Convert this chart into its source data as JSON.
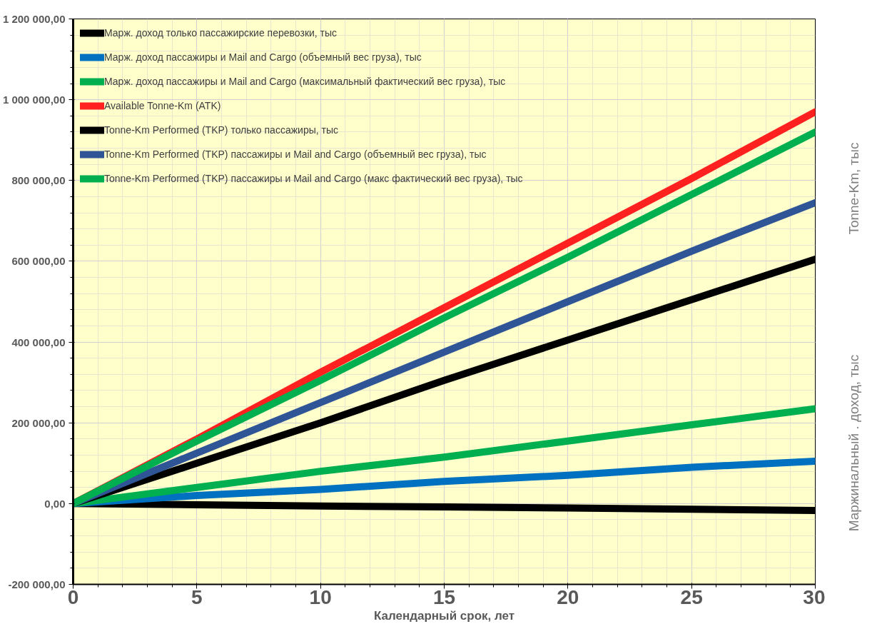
{
  "chart_data": {
    "type": "line",
    "xlabel": "Календарный срок, лет",
    "annotations": [
      "Tonne-Km, тыс",
      "Маржинальный . доход, тыс"
    ],
    "x": [
      0,
      5,
      10,
      15,
      20,
      25,
      30
    ],
    "series": [
      {
        "name": "Марж. доход только пассажирские перевозки, тыс",
        "color": "#000000",
        "values": [
          0,
          -3000,
          -6000,
          -8000,
          -11000,
          -14000,
          -17000
        ]
      },
      {
        "name": "Марж. доход пассажиры и Mail and Cargo (объемный вес груза), тыс",
        "color": "#0070c0",
        "values": [
          0,
          20000,
          35000,
          55000,
          70000,
          90000,
          105000
        ]
      },
      {
        "name": "Марж. доход пассажиры и Mail and Cargo (максимальный фактический вес груза), тыс",
        "color": "#00b050",
        "values": [
          0,
          40000,
          80000,
          115000,
          155000,
          195000,
          235000
        ]
      },
      {
        "name": "Available Tonne-Km (ATK)",
        "color": "#ff2020",
        "values": [
          0,
          160000,
          325000,
          485000,
          645000,
          805000,
          970000
        ]
      },
      {
        "name": "Tonne-Km Performed (TKP) только пассажиры, тыс",
        "color": "#000000",
        "values": [
          0,
          100000,
          200000,
          305000,
          405000,
          505000,
          605000
        ]
      },
      {
        "name": "Tonne-Km Performed (TKP) пассажиры и Mail and Cargo (объемный вес груза), тыс",
        "color": "#2f5597",
        "values": [
          0,
          125000,
          250000,
          375000,
          500000,
          625000,
          745000
        ]
      },
      {
        "name": "Tonne-Km Performed (TKP) пассажиры и Mail and Cargo (макс фактический вес груза), тыс",
        "color": "#00b050",
        "values": [
          0,
          155000,
          305000,
          460000,
          610000,
          765000,
          920000
        ]
      }
    ],
    "xlim": [
      0,
      30
    ],
    "xticks": [
      0,
      5,
      10,
      15,
      20,
      25,
      30
    ],
    "ylim": [
      -200000,
      1200000
    ],
    "yticks": [
      {
        "value": -200000,
        "label": "-200 000,00"
      },
      {
        "value": 0,
        "label": "0,00"
      },
      {
        "value": 200000,
        "label": "200 000,00"
      },
      {
        "value": 400000,
        "label": "400 000,00"
      },
      {
        "value": 600000,
        "label": "600 000,00"
      },
      {
        "value": 800000,
        "label": "800 000,00"
      },
      {
        "value": 1000000,
        "label": "1 000 000,00"
      },
      {
        "value": 1200000,
        "label": "1 200 000,00"
      }
    ],
    "grid": true,
    "legend": "top left",
    "line_style": "solid"
  }
}
